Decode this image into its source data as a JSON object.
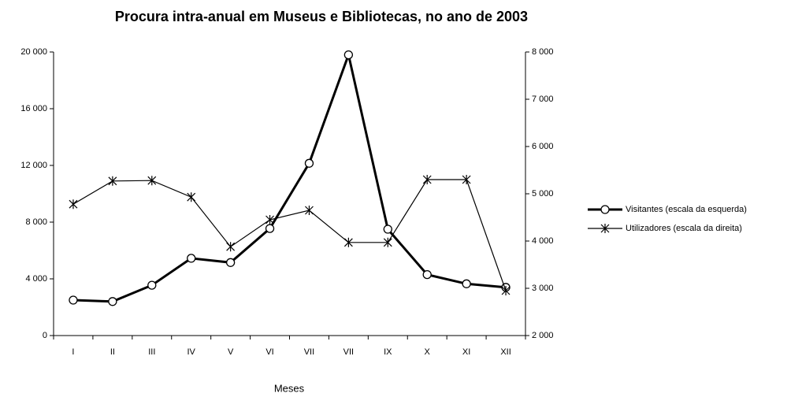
{
  "chart_data": {
    "type": "line",
    "title": "Procura intra-anual em Museus e Bibliotecas, no ano de 2003",
    "x_label": "Meses",
    "categories": [
      "I",
      "II",
      "III",
      "IV",
      "V",
      "VI",
      "VII",
      "VII",
      "IX",
      "X",
      "XI",
      "XII"
    ],
    "series": [
      {
        "name": "Visitantes (escala da esquerda)",
        "color": "#000000",
        "marker": "circle",
        "values": [
          2500,
          2400,
          3550,
          5450,
          5150,
          7550,
          12150,
          19800,
          7500,
          4300,
          3650,
          3400
        ]
      },
      {
        "name": "Utilizadores (escala da direita)",
        "color": "#000000",
        "marker": "asterisk",
        "axis": "y2",
        "values": [
          4780,
          5270,
          5280,
          4930,
          3880,
          4450,
          4650,
          3970,
          3970,
          5300,
          5300,
          2950
        ]
      }
    ],
    "ylim": [
      0,
      20000
    ],
    "yticks": [
      0,
      {
        "value": 4000,
        "label": "4 000"
      },
      {
        "value": 8000,
        "label": "8 000"
      },
      {
        "value": 12000,
        "label": "12 000"
      },
      {
        "value": 16000,
        "label": "16 000"
      },
      {
        "value": 20000,
        "label": "20 000"
      }
    ],
    "y2lim": [
      2000,
      8000
    ],
    "y2ticks": [
      {
        "value": 2000,
        "label": "2 000"
      },
      {
        "value": 3000,
        "label": "3 000"
      },
      {
        "value": 4000,
        "label": "4 000"
      },
      {
        "value": 5000,
        "label": "5 000"
      },
      {
        "value": 6000,
        "label": "6 000"
      },
      {
        "value": 7000,
        "label": "7 000"
      },
      {
        "value": 8000,
        "label": "8 000"
      }
    ],
    "grid": false,
    "legend": "right"
  }
}
